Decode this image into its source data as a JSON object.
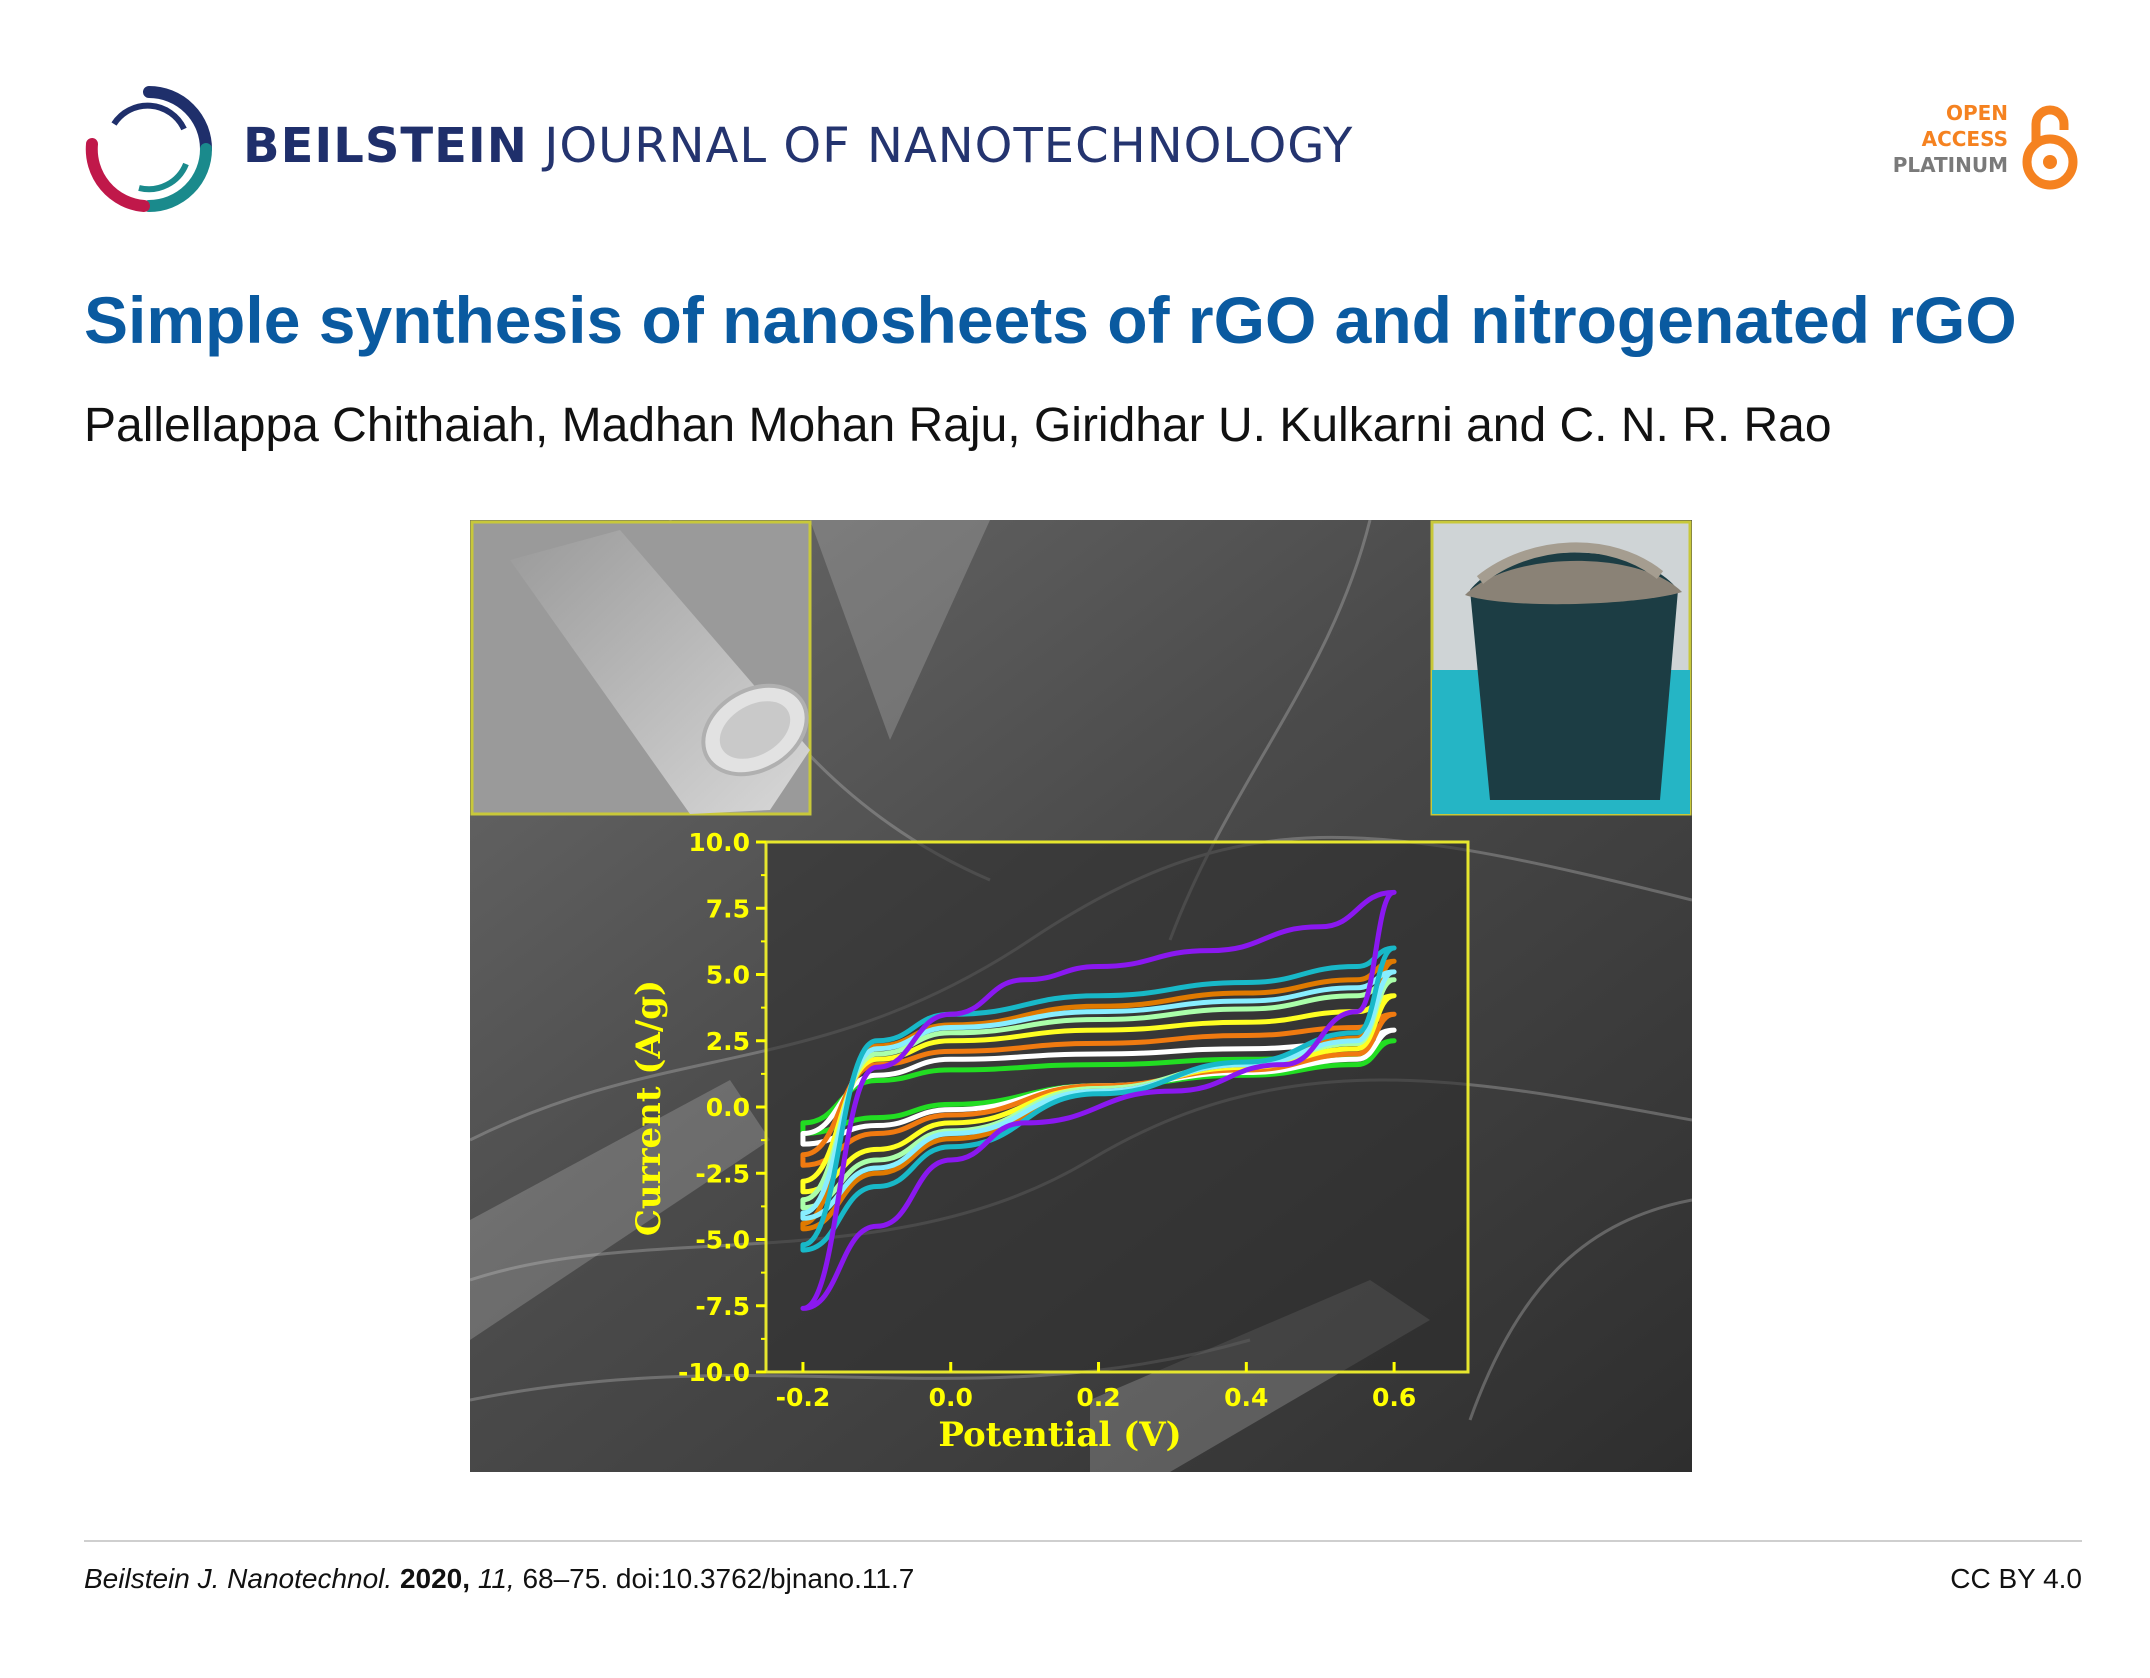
{
  "header": {
    "journal_bold": "BEILSTEIN",
    "journal_rest": "JOURNAL OF NANOTECHNOLOGY",
    "badge": {
      "line1": "OPEN",
      "line2": "ACCESS",
      "line3": "PLATINUM"
    },
    "colors": {
      "navy": "#1f2f6b",
      "orange": "#f58220",
      "title_blue": "#0a5aa0"
    }
  },
  "article": {
    "title": "Simple synthesis of nanosheets of rGO and nitrogenated rGO",
    "authors": "Pallellappa Chithaiah, Madhan Mohan Raju, Giridhar U. Kulkarni and C. N. R. Rao"
  },
  "footer": {
    "journal_abbrev": "Beilstein J. Nanotechnol.",
    "year": "2020,",
    "volume": "11,",
    "pages_doi": "68–75. doi:10.3762/bjnano.11.7",
    "license": "CC BY 4.0"
  },
  "chart_data": {
    "type": "line",
    "xlabel": "Potential (V)",
    "ylabel": "Current (A/g)",
    "xlim": [
      -0.25,
      0.7
    ],
    "ylim": [
      -10.0,
      10.0
    ],
    "xticks": [
      "-0.2",
      "0.0",
      "0.2",
      "0.4",
      "0.6"
    ],
    "yticks": [
      "10.0",
      "7.5",
      "5.0",
      "2.5",
      "0.0",
      "-2.5",
      "-5.0",
      "-7.5",
      "-10.0"
    ],
    "label_color": "#ffff00",
    "series": [
      {
        "color": "#22dd22",
        "upper": [
          [
            -0.2,
            -0.6
          ],
          [
            -0.1,
            1.0
          ],
          [
            0.0,
            1.4
          ],
          [
            0.2,
            1.6
          ],
          [
            0.4,
            1.8
          ],
          [
            0.55,
            1.9
          ],
          [
            0.6,
            2.5
          ]
        ],
        "lower": [
          [
            0.6,
            2.5
          ],
          [
            0.55,
            1.6
          ],
          [
            0.4,
            1.2
          ],
          [
            0.2,
            0.8
          ],
          [
            0.0,
            0.1
          ],
          [
            -0.1,
            -0.4
          ],
          [
            -0.2,
            -1.0
          ]
        ]
      },
      {
        "color": "#ffffff",
        "upper": [
          [
            -0.2,
            -1.0
          ],
          [
            -0.1,
            1.2
          ],
          [
            0.0,
            1.8
          ],
          [
            0.2,
            2.0
          ],
          [
            0.4,
            2.2
          ],
          [
            0.55,
            2.4
          ],
          [
            0.6,
            2.9
          ]
        ],
        "lower": [
          [
            0.6,
            2.9
          ],
          [
            0.55,
            1.8
          ],
          [
            0.4,
            1.3
          ],
          [
            0.2,
            0.8
          ],
          [
            0.0,
            -0.1
          ],
          [
            -0.1,
            -0.7
          ],
          [
            -0.2,
            -1.4
          ]
        ]
      },
      {
        "color": "#f07a10",
        "upper": [
          [
            -0.2,
            -1.8
          ],
          [
            -0.1,
            1.6
          ],
          [
            0.0,
            2.1
          ],
          [
            0.2,
            2.4
          ],
          [
            0.4,
            2.7
          ],
          [
            0.55,
            3.0
          ],
          [
            0.6,
            3.5
          ]
        ],
        "lower": [
          [
            0.6,
            3.5
          ],
          [
            0.55,
            2.0
          ],
          [
            0.4,
            1.4
          ],
          [
            0.2,
            0.8
          ],
          [
            0.0,
            -0.3
          ],
          [
            -0.1,
            -1.0
          ],
          [
            -0.2,
            -2.2
          ]
        ]
      },
      {
        "color": "#ffff22",
        "upper": [
          [
            -0.2,
            -2.8
          ],
          [
            -0.1,
            1.8
          ],
          [
            0.0,
            2.5
          ],
          [
            0.2,
            2.9
          ],
          [
            0.4,
            3.2
          ],
          [
            0.55,
            3.6
          ],
          [
            0.6,
            4.2
          ]
        ],
        "lower": [
          [
            0.6,
            4.2
          ],
          [
            0.55,
            2.2
          ],
          [
            0.4,
            1.5
          ],
          [
            0.2,
            0.7
          ],
          [
            0.0,
            -0.6
          ],
          [
            -0.1,
            -1.6
          ],
          [
            -0.2,
            -3.2
          ]
        ]
      },
      {
        "color": "#aaffaa",
        "upper": [
          [
            -0.2,
            -3.5
          ],
          [
            -0.1,
            2.0
          ],
          [
            0.0,
            2.8
          ],
          [
            0.2,
            3.3
          ],
          [
            0.4,
            3.7
          ],
          [
            0.55,
            4.2
          ],
          [
            0.6,
            4.8
          ]
        ],
        "lower": [
          [
            0.6,
            4.8
          ],
          [
            0.55,
            2.4
          ],
          [
            0.4,
            1.6
          ],
          [
            0.2,
            0.7
          ],
          [
            0.0,
            -0.9
          ],
          [
            -0.1,
            -2.0
          ],
          [
            -0.2,
            -3.8
          ]
        ]
      },
      {
        "color": "#e07a00",
        "upper": [
          [
            -0.2,
            -4.4
          ],
          [
            -0.1,
            2.3
          ],
          [
            0.0,
            3.1
          ],
          [
            0.2,
            3.8
          ],
          [
            0.4,
            4.3
          ],
          [
            0.55,
            4.8
          ],
          [
            0.6,
            5.5
          ]
        ],
        "lower": [
          [
            0.6,
            5.5
          ],
          [
            0.55,
            2.6
          ],
          [
            0.4,
            1.6
          ],
          [
            0.2,
            0.6
          ],
          [
            0.0,
            -1.2
          ],
          [
            -0.1,
            -2.5
          ],
          [
            -0.2,
            -4.6
          ]
        ]
      },
      {
        "color": "#88eeff",
        "upper": [
          [
            -0.2,
            -4.0
          ],
          [
            -0.1,
            2.2
          ],
          [
            0.0,
            3.0
          ],
          [
            0.2,
            3.6
          ],
          [
            0.4,
            4.0
          ],
          [
            0.55,
            4.5
          ],
          [
            0.6,
            5.1
          ]
        ],
        "lower": [
          [
            0.6,
            5.1
          ],
          [
            0.55,
            2.5
          ],
          [
            0.4,
            1.6
          ],
          [
            0.2,
            0.6
          ],
          [
            0.0,
            -1.0
          ],
          [
            -0.1,
            -2.3
          ],
          [
            -0.2,
            -4.2
          ]
        ]
      },
      {
        "color": "#18b8c8",
        "upper": [
          [
            -0.2,
            -5.2
          ],
          [
            -0.1,
            2.5
          ],
          [
            0.0,
            3.5
          ],
          [
            0.2,
            4.2
          ],
          [
            0.4,
            4.7
          ],
          [
            0.55,
            5.3
          ],
          [
            0.6,
            6.0
          ]
        ],
        "lower": [
          [
            0.6,
            6.0
          ],
          [
            0.55,
            2.8
          ],
          [
            0.4,
            1.7
          ],
          [
            0.2,
            0.5
          ],
          [
            0.0,
            -1.5
          ],
          [
            -0.1,
            -3.0
          ],
          [
            -0.2,
            -5.4
          ]
        ]
      },
      {
        "color": "#8a18f0",
        "upper": [
          [
            -0.2,
            -7.6
          ],
          [
            -0.1,
            1.5
          ],
          [
            0.0,
            3.5
          ],
          [
            0.1,
            4.8
          ],
          [
            0.2,
            5.3
          ],
          [
            0.35,
            5.9
          ],
          [
            0.5,
            6.8
          ],
          [
            0.6,
            8.1
          ]
        ],
        "lower": [
          [
            0.6,
            8.1
          ],
          [
            0.55,
            3.6
          ],
          [
            0.45,
            1.6
          ],
          [
            0.3,
            0.6
          ],
          [
            0.1,
            -0.6
          ],
          [
            0.0,
            -2.0
          ],
          [
            -0.1,
            -4.5
          ],
          [
            -0.2,
            -7.6
          ]
        ]
      }
    ]
  }
}
